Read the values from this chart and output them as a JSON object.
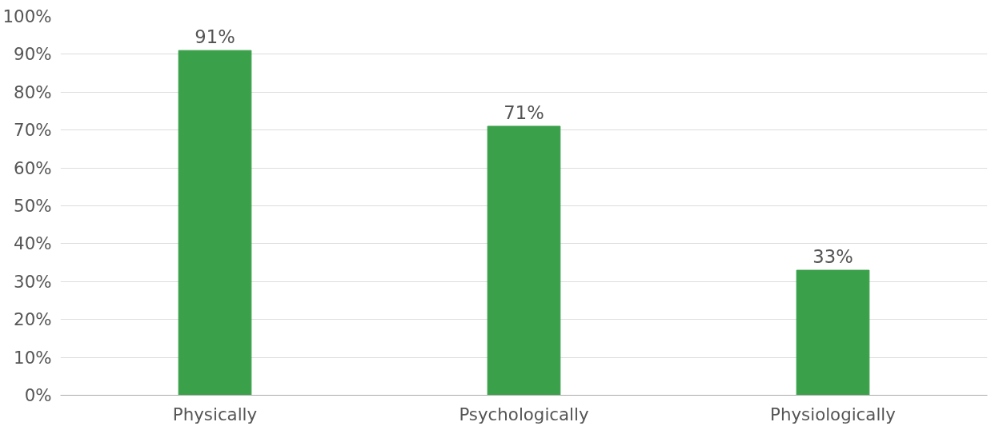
{
  "chart_data": {
    "type": "bar",
    "categories": [
      "Physically",
      "Psychologically",
      "Physiologically"
    ],
    "values": [
      91,
      71,
      33
    ],
    "color": "#3aa04a",
    "data_labels": true,
    "value_labels": [
      "91%",
      "71%",
      "33%"
    ],
    "ylim": [
      0,
      100
    ],
    "yticks": [
      {
        "value": 0,
        "label": "0%"
      },
      {
        "value": 10,
        "label": "10%"
      },
      {
        "value": 20,
        "label": "20%"
      },
      {
        "value": 30,
        "label": "30%"
      },
      {
        "value": 40,
        "label": "40%"
      },
      {
        "value": 50,
        "label": "50%"
      },
      {
        "value": 60,
        "label": "60%"
      },
      {
        "value": 70,
        "label": "70%"
      },
      {
        "value": 80,
        "label": "80%"
      },
      {
        "value": 90,
        "label": "90%"
      },
      {
        "value": 100,
        "label": "100%"
      }
    ],
    "grid": "y"
  }
}
